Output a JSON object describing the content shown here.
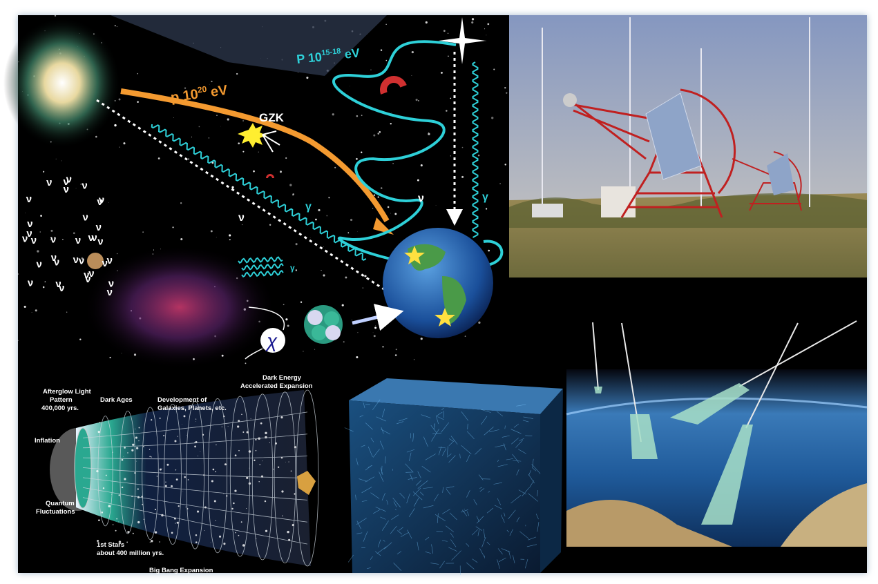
{
  "diagram": {
    "cosmic_rays": {
      "uhe_proton": {
        "prefix": "p 10",
        "exponent": "20",
        "unit": "eV"
      },
      "gzk": "GZK",
      "galactic_proton": {
        "prefix": "P 10",
        "exponent": "15-18",
        "unit": "eV"
      },
      "neutrino": "ν",
      "gamma": "γ",
      "dark_matter": "χ"
    },
    "timeline": {
      "afterglow": [
        "Afterglow Light",
        "Pattern",
        "400,000 yrs."
      ],
      "dark_ages": "Dark Ages",
      "development": [
        "Development of",
        "Galaxies, Planets, etc."
      ],
      "dark_energy": [
        "Dark Energy",
        "Accelerated Expansion"
      ],
      "inflation": "Inflation",
      "quantum": [
        "Quantum",
        "Fluctuations"
      ],
      "first_stars": [
        "1st Stars",
        "about 400 million yrs."
      ],
      "big_bang": "Big Bang Expansion"
    }
  }
}
